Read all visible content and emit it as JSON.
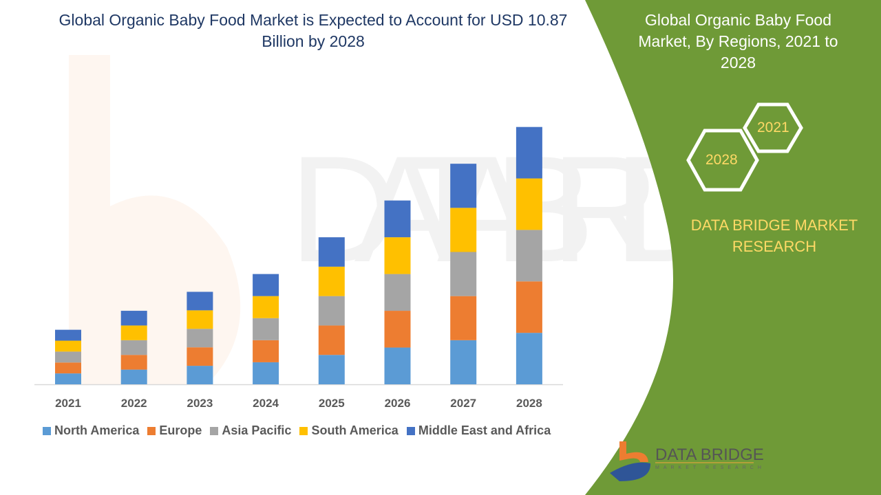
{
  "title": "Global Organic Baby Food Market is Expected to Account for USD 10.87 Billion by 2028",
  "side_panel": {
    "title": "Global Organic Baby Food Market, By Regions, 2021 to 2028",
    "hex_labels": [
      "2021",
      "2028"
    ],
    "brand": "DATA BRIDGE MARKET RESEARCH",
    "logo_text": "DATA BRIDGE",
    "logo_subtext": "MARKET RESEARCH",
    "color": "#6f9a37"
  },
  "chart_data": {
    "type": "bar",
    "stacked": true,
    "title": "Global Organic Baby Food Market is Expected to Account for USD 10.87 Billion by 2028",
    "xlabel": "",
    "ylabel": "",
    "ylim": [
      0,
      11
    ],
    "grid": false,
    "legend": "bottom",
    "categories": [
      "2021",
      "2022",
      "2023",
      "2024",
      "2025",
      "2026",
      "2027",
      "2028"
    ],
    "series": [
      {
        "name": "North America",
        "color": "#5b9bd5",
        "values": [
          0.46,
          0.62,
          0.78,
          0.93,
          1.24,
          1.55,
          1.86,
          2.17
        ]
      },
      {
        "name": "Europe",
        "color": "#ed7d31",
        "values": [
          0.46,
          0.62,
          0.78,
          0.93,
          1.24,
          1.55,
          1.86,
          2.17
        ]
      },
      {
        "name": "Asia Pacific",
        "color": "#a5a5a5",
        "values": [
          0.46,
          0.62,
          0.78,
          0.93,
          1.24,
          1.55,
          1.86,
          2.17
        ]
      },
      {
        "name": "South America",
        "color": "#ffc000",
        "values": [
          0.46,
          0.62,
          0.78,
          0.93,
          1.24,
          1.55,
          1.86,
          2.17
        ]
      },
      {
        "name": "Middle East and Africa",
        "color": "#4472c4",
        "values": [
          0.46,
          0.62,
          0.78,
          0.93,
          1.24,
          1.55,
          1.86,
          2.17
        ]
      }
    ]
  }
}
